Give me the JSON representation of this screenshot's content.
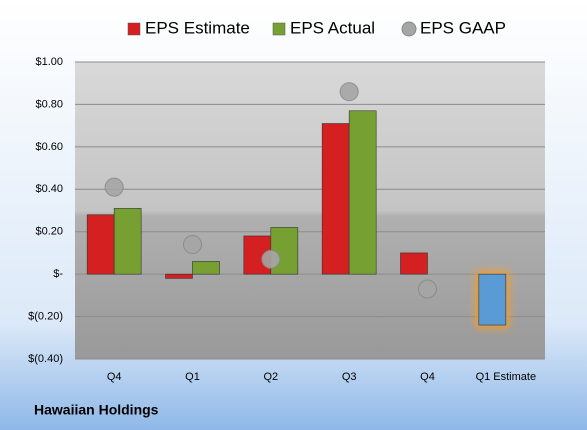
{
  "chart_data": {
    "type": "bar",
    "footer": "Hawaiian Holdings",
    "categories": [
      "Q4",
      "Q1",
      "Q2",
      "Q3",
      "Q4",
      "Q1 Estimate"
    ],
    "series": [
      {
        "name": "EPS Estimate",
        "color": "#d42020",
        "values": [
          0.28,
          -0.02,
          0.18,
          0.71,
          0.1,
          -0.24
        ],
        "point_colors": [
          null,
          null,
          null,
          null,
          null,
          "#5b9bd5"
        ]
      },
      {
        "name": "EPS Actual",
        "color": "#77a033",
        "values": [
          0.31,
          0.06,
          0.22,
          0.77,
          null,
          null
        ]
      },
      {
        "name": "EPS GAAP",
        "color": "#a6a6a6",
        "marker": "circle",
        "values": [
          0.41,
          0.14,
          0.07,
          0.86,
          -0.07,
          null
        ]
      }
    ],
    "ylim": [
      -0.4,
      1.0
    ],
    "yticks": [
      {
        "value": -0.4,
        "label": "$(0.40)"
      },
      {
        "value": -0.2,
        "label": "$(0.20)"
      },
      {
        "value": 0,
        "label": "$-"
      },
      {
        "value": 0.2,
        "label": "$0.20"
      },
      {
        "value": 0.4,
        "label": "$0.40"
      },
      {
        "value": 0.6,
        "label": "$0.60"
      },
      {
        "value": 0.8,
        "label": "$0.80"
      },
      {
        "value": 1.0,
        "label": "$1.00"
      }
    ],
    "grid": true
  }
}
